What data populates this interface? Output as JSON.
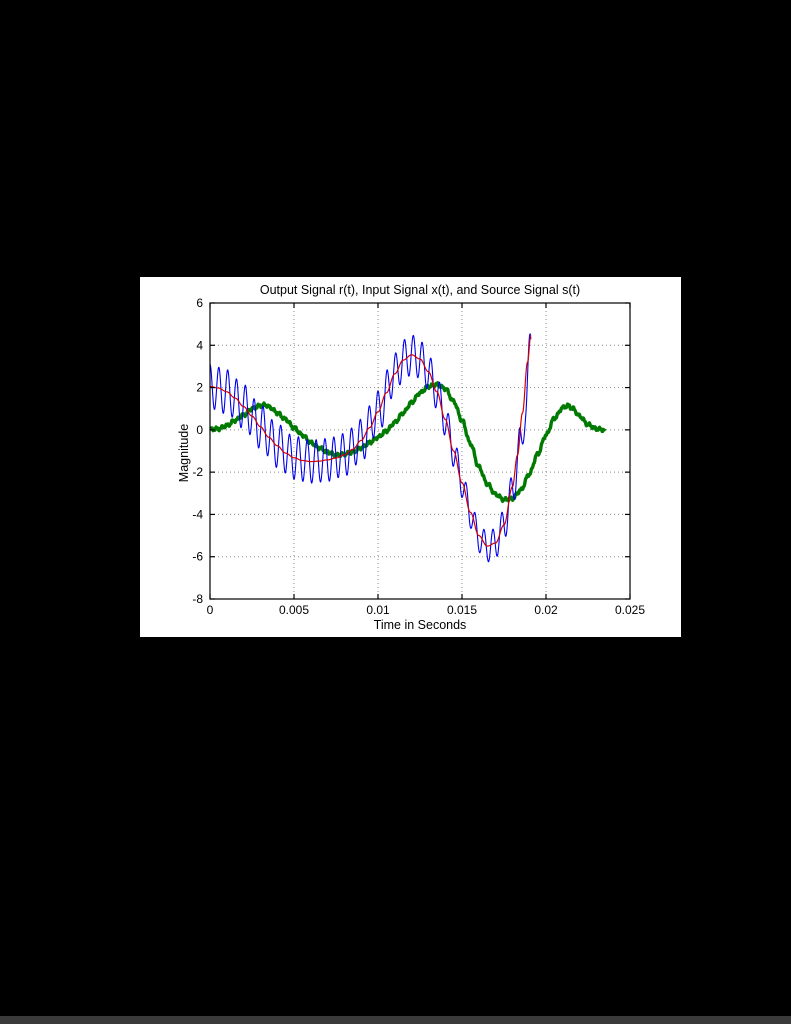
{
  "page": {
    "background": "#000000",
    "figure_background": "#ffffff",
    "bottom_bar_color": "#3a3a3a"
  },
  "chart_data": {
    "type": "line",
    "title": "Output Signal r(t), Input Signal x(t), and Source Signal s(t)",
    "xlabel": "Time in Seconds",
    "ylabel": "Magnitude",
    "xlim": [
      0,
      0.025
    ],
    "ylim": [
      -8,
      6
    ],
    "grid": true,
    "legend": "none",
    "xticks": [
      0,
      0.005,
      0.01,
      0.015,
      0.02,
      0.025
    ],
    "xtick_labels": [
      "0",
      "0.005",
      "0.01",
      "0.015",
      "0.02",
      "0.025"
    ],
    "yticks": [
      -8,
      -6,
      -4,
      -2,
      0,
      2,
      4,
      6
    ],
    "ytick_labels": [
      "-8",
      "-6",
      "-4",
      "-2",
      "0",
      "2",
      "4",
      "6"
    ],
    "series": [
      {
        "name": "Source Signal s(t)",
        "slug": "source-s",
        "color": "#007a00",
        "width": 3.4,
        "noise": {
          "frequency_hz": 3200,
          "amplitude": 0.06
        },
        "points": [
          [
            0,
            0.02
          ],
          [
            0.0005,
            0.05
          ],
          [
            0.001,
            0.2
          ],
          [
            0.0015,
            0.45
          ],
          [
            0.002,
            0.7
          ],
          [
            0.0025,
            1.0
          ],
          [
            0.003,
            1.15
          ],
          [
            0.0033,
            1.18
          ],
          [
            0.0036,
            1.05
          ],
          [
            0.004,
            0.8
          ],
          [
            0.0045,
            0.5
          ],
          [
            0.005,
            0.1
          ],
          [
            0.0055,
            -0.25
          ],
          [
            0.006,
            -0.6
          ],
          [
            0.0065,
            -0.85
          ],
          [
            0.007,
            -1.05
          ],
          [
            0.0075,
            -1.2
          ],
          [
            0.008,
            -1.15
          ],
          [
            0.0085,
            -1.05
          ],
          [
            0.009,
            -0.85
          ],
          [
            0.0095,
            -0.6
          ],
          [
            0.01,
            -0.35
          ],
          [
            0.0105,
            -0.05
          ],
          [
            0.011,
            0.35
          ],
          [
            0.0115,
            0.8
          ],
          [
            0.012,
            1.3
          ],
          [
            0.0125,
            1.75
          ],
          [
            0.013,
            2.05
          ],
          [
            0.0135,
            2.15
          ],
          [
            0.014,
            1.95
          ],
          [
            0.0145,
            1.35
          ],
          [
            0.015,
            0.45
          ],
          [
            0.0155,
            -0.65
          ],
          [
            0.016,
            -1.75
          ],
          [
            0.0165,
            -2.55
          ],
          [
            0.017,
            -3.05
          ],
          [
            0.0175,
            -3.3
          ],
          [
            0.018,
            -3.25
          ],
          [
            0.0185,
            -2.85
          ],
          [
            0.019,
            -2.1
          ],
          [
            0.0195,
            -1.15
          ],
          [
            0.02,
            -0.25
          ],
          [
            0.0205,
            0.55
          ],
          [
            0.021,
            1.05
          ],
          [
            0.0213,
            1.15
          ],
          [
            0.0216,
            1.0
          ],
          [
            0.022,
            0.65
          ],
          [
            0.0225,
            0.25
          ],
          [
            0.023,
            0.05
          ],
          [
            0.0235,
            0.0
          ]
        ]
      },
      {
        "name": "Output Signal r(t)",
        "slug": "output-r",
        "color": "#0000ee",
        "width": 1.1,
        "ripple": {
          "frequency_hz": 1900,
          "amplitude_points": [
            [
              0,
              1.05
            ],
            [
              0.01,
              1.0
            ],
            [
              0.012,
              0.95
            ],
            [
              0.0135,
              0.8
            ],
            [
              0.015,
              0.7
            ],
            [
              0.017,
              0.7
            ],
            [
              0.0191,
              0.85
            ]
          ]
        },
        "envelope": [
          [
            0,
            2.05
          ],
          [
            0.001,
            1.8
          ],
          [
            0.002,
            1.1
          ],
          [
            0.003,
            0.15
          ],
          [
            0.004,
            -0.75
          ],
          [
            0.005,
            -1.32
          ],
          [
            0.006,
            -1.5
          ],
          [
            0.007,
            -1.42
          ],
          [
            0.008,
            -1.18
          ],
          [
            0.009,
            -0.5
          ],
          [
            0.01,
            0.85
          ],
          [
            0.011,
            2.65
          ],
          [
            0.0115,
            3.3
          ],
          [
            0.012,
            3.55
          ],
          [
            0.0125,
            3.35
          ],
          [
            0.013,
            2.75
          ],
          [
            0.0135,
            1.8
          ],
          [
            0.014,
            0.5
          ],
          [
            0.0145,
            -1.0
          ],
          [
            0.015,
            -2.5
          ],
          [
            0.0155,
            -3.95
          ],
          [
            0.016,
            -5.1
          ],
          [
            0.0165,
            -5.55
          ],
          [
            0.017,
            -5.35
          ],
          [
            0.0175,
            -4.5
          ],
          [
            0.018,
            -2.9
          ],
          [
            0.0185,
            -0.6
          ],
          [
            0.0188,
            0.9
          ],
          [
            0.0191,
            4.5
          ]
        ]
      },
      {
        "name": "Input Signal x(t)",
        "slug": "input-x",
        "color": "#d40000",
        "width": 1.2,
        "points": [
          [
            0,
            2.05
          ],
          [
            0.0005,
            1.98
          ],
          [
            0.001,
            1.8
          ],
          [
            0.0015,
            1.5
          ],
          [
            0.002,
            1.1
          ],
          [
            0.0025,
            0.65
          ],
          [
            0.003,
            0.15
          ],
          [
            0.0035,
            -0.35
          ],
          [
            0.004,
            -0.75
          ],
          [
            0.0045,
            -1.1
          ],
          [
            0.005,
            -1.32
          ],
          [
            0.0055,
            -1.45
          ],
          [
            0.006,
            -1.5
          ],
          [
            0.0065,
            -1.48
          ],
          [
            0.007,
            -1.42
          ],
          [
            0.0075,
            -1.33
          ],
          [
            0.008,
            -1.18
          ],
          [
            0.0085,
            -0.92
          ],
          [
            0.009,
            -0.5
          ],
          [
            0.0095,
            0.1
          ],
          [
            0.01,
            0.85
          ],
          [
            0.0105,
            1.75
          ],
          [
            0.011,
            2.65
          ],
          [
            0.0115,
            3.3
          ],
          [
            0.012,
            3.55
          ],
          [
            0.0125,
            3.35
          ],
          [
            0.013,
            2.75
          ],
          [
            0.0135,
            1.8
          ],
          [
            0.014,
            0.5
          ],
          [
            0.0145,
            -1.0
          ],
          [
            0.015,
            -2.5
          ],
          [
            0.0155,
            -3.9
          ],
          [
            0.016,
            -5.0
          ],
          [
            0.0165,
            -5.5
          ],
          [
            0.017,
            -5.35
          ],
          [
            0.0175,
            -4.5
          ],
          [
            0.018,
            -2.7
          ],
          [
            0.0183,
            -1.2
          ],
          [
            0.0186,
            0.8
          ],
          [
            0.0189,
            3.2
          ],
          [
            0.0191,
            4.5
          ]
        ]
      }
    ]
  }
}
